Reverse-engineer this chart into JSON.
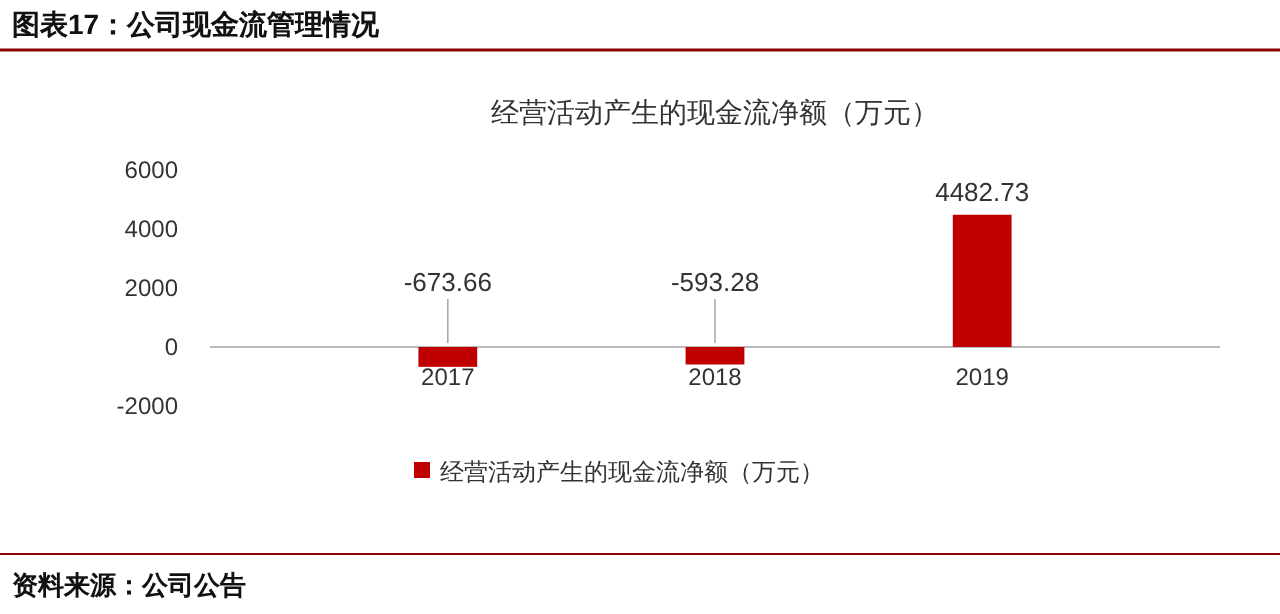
{
  "chart_data": {
    "type": "bar",
    "title": "经营活动产生的现金流净额（万元）",
    "subtitle": "图表17：公司现金流管理情况",
    "categories": [
      "2017",
      "2018",
      "2019"
    ],
    "series": [
      {
        "name": "经营活动产生的现金流净额（万元）",
        "color": "#c00000",
        "values": [
          -673.66,
          -593.28,
          4482.73
        ]
      }
    ],
    "ylim": [
      -2000,
      6000
    ],
    "yticks": [
      -2000,
      0,
      2000,
      4000,
      6000
    ],
    "grid": false,
    "legend": "bottom",
    "data_labels": true,
    "annotations": [
      "资料来源：公司公告"
    ]
  }
}
